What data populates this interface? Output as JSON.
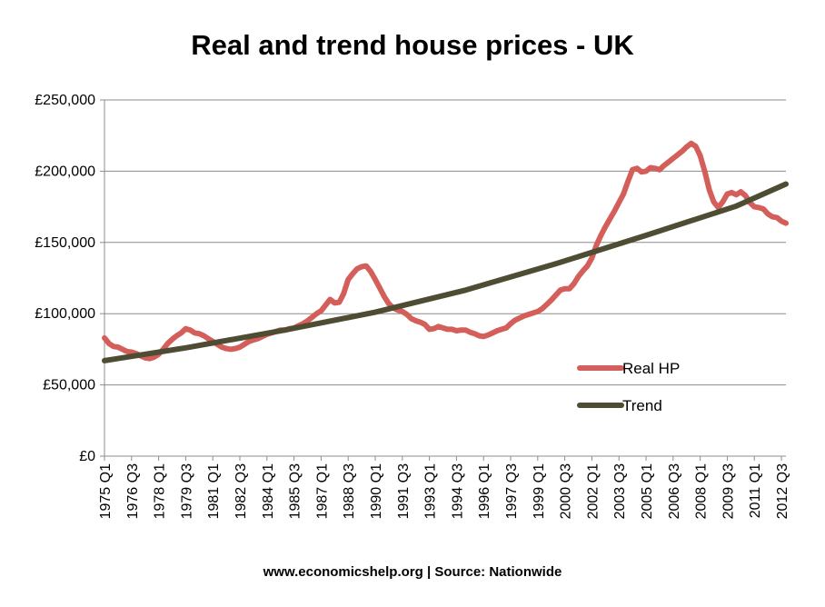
{
  "chart_data": {
    "type": "line",
    "title": "Real and trend house prices - UK",
    "footer": "www.economicshelp.org | Source: Nationwide",
    "xlabel": "",
    "ylabel": "",
    "ylim": [
      0,
      250000
    ],
    "y_ticks": [
      {
        "value": 0,
        "label": "£0"
      },
      {
        "value": 50000,
        "label": "£50,000"
      },
      {
        "value": 100000,
        "label": "£100,000"
      },
      {
        "value": 150000,
        "label": "£150,000"
      },
      {
        "value": 200000,
        "label": "£200,000"
      },
      {
        "value": 250000,
        "label": "£250,000"
      }
    ],
    "x_start": "1975 Q1",
    "x_end": "2012 Q4",
    "x_tick_labels": [
      {
        "quarter": "1975 Q1",
        "label": "1975 Q1"
      },
      {
        "quarter": "1976 Q3",
        "label": "1976 Q3"
      },
      {
        "quarter": "1978 Q1",
        "label": "1978 Q1"
      },
      {
        "quarter": "1979 Q3",
        "label": "1979 Q3"
      },
      {
        "quarter": "1981 Q1",
        "label": "1981 Q1"
      },
      {
        "quarter": "1982 Q3",
        "label": "1982 Q3"
      },
      {
        "quarter": "1984 Q1",
        "label": "1984 Q1"
      },
      {
        "quarter": "1985 Q3",
        "label": "1985 Q3"
      },
      {
        "quarter": "1987 Q1",
        "label": "1987 Q1"
      },
      {
        "quarter": "1988 Q3",
        "label": "1988 Q3"
      },
      {
        "quarter": "1990 Q1",
        "label": "1990 Q1"
      },
      {
        "quarter": "1991 Q3",
        "label": "1991 Q3"
      },
      {
        "quarter": "1993 Q1",
        "label": "1993 Q1"
      },
      {
        "quarter": "1994 Q3",
        "label": "1994 Q3"
      },
      {
        "quarter": "1996 Q1",
        "label": "1996 Q1"
      },
      {
        "quarter": "1997 Q3",
        "label": "1997 Q3"
      },
      {
        "quarter": "1999 Q1",
        "label": "1999 Q1"
      },
      {
        "quarter": "2000 Q3",
        "label": "2000 Q3"
      },
      {
        "quarter": "2002 Q1",
        "label": "2002 Q1"
      },
      {
        "quarter": "2003 Q3",
        "label": "2003 Q3"
      },
      {
        "quarter": "2005 Q1",
        "label": "2005 Q1"
      },
      {
        "quarter": "2006 Q3",
        "label": "2006 Q3"
      },
      {
        "quarter": "2008 Q1",
        "label": "2008 Q1"
      },
      {
        "quarter": "2009 Q3",
        "label": "2009 Q3"
      },
      {
        "quarter": "2011 Q1",
        "label": "2011 Q1"
      },
      {
        "quarter": "2012 Q3",
        "label": "2012 Q3"
      }
    ],
    "grid": true,
    "legend": "right",
    "series": [
      {
        "name": "Real HP",
        "color": "#d45f5a",
        "points": [
          [
            "1975 Q1",
            83000
          ],
          [
            "1975 Q2",
            79000
          ],
          [
            "1975 Q3",
            77000
          ],
          [
            "1975 Q4",
            76500
          ],
          [
            "1976 Q1",
            75000
          ],
          [
            "1976 Q2",
            73500
          ],
          [
            "1976 Q3",
            73000
          ],
          [
            "1976 Q4",
            72000
          ],
          [
            "1977 Q1",
            70500
          ],
          [
            "1977 Q2",
            69000
          ],
          [
            "1977 Q3",
            68500
          ],
          [
            "1977 Q4",
            69500
          ],
          [
            "1978 Q1",
            71500
          ],
          [
            "1978 Q2",
            75000
          ],
          [
            "1978 Q3",
            79000
          ],
          [
            "1978 Q4",
            82000
          ],
          [
            "1979 Q1",
            84500
          ],
          [
            "1979 Q2",
            86500
          ],
          [
            "1979 Q3",
            89500
          ],
          [
            "1979 Q4",
            88500
          ],
          [
            "1980 Q1",
            86500
          ],
          [
            "1980 Q2",
            86000
          ],
          [
            "1980 Q3",
            84500
          ],
          [
            "1980 Q4",
            82500
          ],
          [
            "1981 Q1",
            80500
          ],
          [
            "1981 Q2",
            78500
          ],
          [
            "1981 Q3",
            76500
          ],
          [
            "1981 Q4",
            75500
          ],
          [
            "1982 Q1",
            75000
          ],
          [
            "1982 Q2",
            75500
          ],
          [
            "1982 Q3",
            76500
          ],
          [
            "1982 Q4",
            78500
          ],
          [
            "1983 Q1",
            80500
          ],
          [
            "1983 Q2",
            81500
          ],
          [
            "1983 Q3",
            82500
          ],
          [
            "1983 Q4",
            84000
          ],
          [
            "1984 Q1",
            85500
          ],
          [
            "1984 Q2",
            86500
          ],
          [
            "1984 Q3",
            87500
          ],
          [
            "1984 Q4",
            88500
          ],
          [
            "1985 Q1",
            88500
          ],
          [
            "1985 Q2",
            89500
          ],
          [
            "1985 Q3",
            90000
          ],
          [
            "1985 Q4",
            91500
          ],
          [
            "1986 Q1",
            93000
          ],
          [
            "1986 Q2",
            95000
          ],
          [
            "1986 Q3",
            97500
          ],
          [
            "1986 Q4",
            100000
          ],
          [
            "1987 Q1",
            102000
          ],
          [
            "1987 Q2",
            106000
          ],
          [
            "1987 Q3",
            110000
          ],
          [
            "1987 Q4",
            107500
          ],
          [
            "1988 Q1",
            108000
          ],
          [
            "1988 Q2",
            114000
          ],
          [
            "1988 Q3",
            124000
          ],
          [
            "1988 Q4",
            128000
          ],
          [
            "1989 Q1",
            131500
          ],
          [
            "1989 Q2",
            133000
          ],
          [
            "1989 Q3",
            133500
          ],
          [
            "1989 Q4",
            129500
          ],
          [
            "1990 Q1",
            124000
          ],
          [
            "1990 Q2",
            118000
          ],
          [
            "1990 Q3",
            112000
          ],
          [
            "1990 Q4",
            107000
          ],
          [
            "1991 Q1",
            104000
          ],
          [
            "1991 Q2",
            102500
          ],
          [
            "1991 Q3",
            101500
          ],
          [
            "1991 Q4",
            99500
          ],
          [
            "1992 Q1",
            96500
          ],
          [
            "1992 Q2",
            95000
          ],
          [
            "1992 Q3",
            94000
          ],
          [
            "1992 Q4",
            92500
          ],
          [
            "1993 Q1",
            89000
          ],
          [
            "1993 Q2",
            89500
          ],
          [
            "1993 Q3",
            91000
          ],
          [
            "1993 Q4",
            90000
          ],
          [
            "1994 Q1",
            89000
          ],
          [
            "1994 Q2",
            89000
          ],
          [
            "1994 Q3",
            88000
          ],
          [
            "1994 Q4",
            88500
          ],
          [
            "1995 Q1",
            88500
          ],
          [
            "1995 Q2",
            87000
          ],
          [
            "1995 Q3",
            86000
          ],
          [
            "1995 Q4",
            84500
          ],
          [
            "1996 Q1",
            84000
          ],
          [
            "1996 Q2",
            85000
          ],
          [
            "1996 Q3",
            86500
          ],
          [
            "1996 Q4",
            88000
          ],
          [
            "1997 Q1",
            89000
          ],
          [
            "1997 Q2",
            90000
          ],
          [
            "1997 Q3",
            93000
          ],
          [
            "1997 Q4",
            95500
          ],
          [
            "1998 Q1",
            97000
          ],
          [
            "1998 Q2",
            98500
          ],
          [
            "1998 Q3",
            99500
          ],
          [
            "1998 Q4",
            100500
          ],
          [
            "1999 Q1",
            101500
          ],
          [
            "1999 Q2",
            103500
          ],
          [
            "1999 Q3",
            106500
          ],
          [
            "1999 Q4",
            109500
          ],
          [
            "2000 Q1",
            113000
          ],
          [
            "2000 Q2",
            116500
          ],
          [
            "2000 Q3",
            117500
          ],
          [
            "2000 Q4",
            117500
          ],
          [
            "2001 Q1",
            121000
          ],
          [
            "2001 Q2",
            126000
          ],
          [
            "2001 Q3",
            130000
          ],
          [
            "2001 Q4",
            133500
          ],
          [
            "2002 Q1",
            139000
          ],
          [
            "2002 Q2",
            148000
          ],
          [
            "2002 Q3",
            155000
          ],
          [
            "2002 Q4",
            161000
          ],
          [
            "2003 Q1",
            166500
          ],
          [
            "2003 Q2",
            172000
          ],
          [
            "2003 Q3",
            178000
          ],
          [
            "2003 Q4",
            184000
          ],
          [
            "2004 Q1",
            193000
          ],
          [
            "2004 Q2",
            201000
          ],
          [
            "2004 Q3",
            202000
          ],
          [
            "2004 Q4",
            199500
          ],
          [
            "2005 Q1",
            200000
          ],
          [
            "2005 Q2",
            202500
          ],
          [
            "2005 Q3",
            202000
          ],
          [
            "2005 Q4",
            201000
          ],
          [
            "2006 Q1",
            204000
          ],
          [
            "2006 Q2",
            206500
          ],
          [
            "2006 Q3",
            209000
          ],
          [
            "2006 Q4",
            211500
          ],
          [
            "2007 Q1",
            214000
          ],
          [
            "2007 Q2",
            217000
          ],
          [
            "2007 Q3",
            219500
          ],
          [
            "2007 Q4",
            217500
          ],
          [
            "2008 Q1",
            211000
          ],
          [
            "2008 Q2",
            200000
          ],
          [
            "2008 Q3",
            187000
          ],
          [
            "2008 Q4",
            178500
          ],
          [
            "2009 Q1",
            174500
          ],
          [
            "2009 Q2",
            178500
          ],
          [
            "2009 Q3",
            184000
          ],
          [
            "2009 Q4",
            185000
          ],
          [
            "2010 Q1",
            183500
          ],
          [
            "2010 Q2",
            185500
          ],
          [
            "2010 Q3",
            183000
          ],
          [
            "2010 Q4",
            178000
          ],
          [
            "2011 Q1",
            175000
          ],
          [
            "2011 Q2",
            174500
          ],
          [
            "2011 Q3",
            173500
          ],
          [
            "2011 Q4",
            170000
          ],
          [
            "2012 Q1",
            168000
          ],
          [
            "2012 Q2",
            167500
          ],
          [
            "2012 Q3",
            165000
          ],
          [
            "2012 Q4",
            163500
          ]
        ]
      },
      {
        "name": "Trend",
        "color": "#4e4c32",
        "points": [
          [
            "1975 Q1",
            67000
          ],
          [
            "1979 Q3",
            76000
          ],
          [
            "1985 Q1",
            88500
          ],
          [
            "1990 Q1",
            101000
          ],
          [
            "1995 Q1",
            116500
          ],
          [
            "2000 Q1",
            135000
          ],
          [
            "2005 Q1",
            155000
          ],
          [
            "2010 Q1",
            175500
          ],
          [
            "2012 Q4",
            191000
          ]
        ]
      }
    ]
  }
}
